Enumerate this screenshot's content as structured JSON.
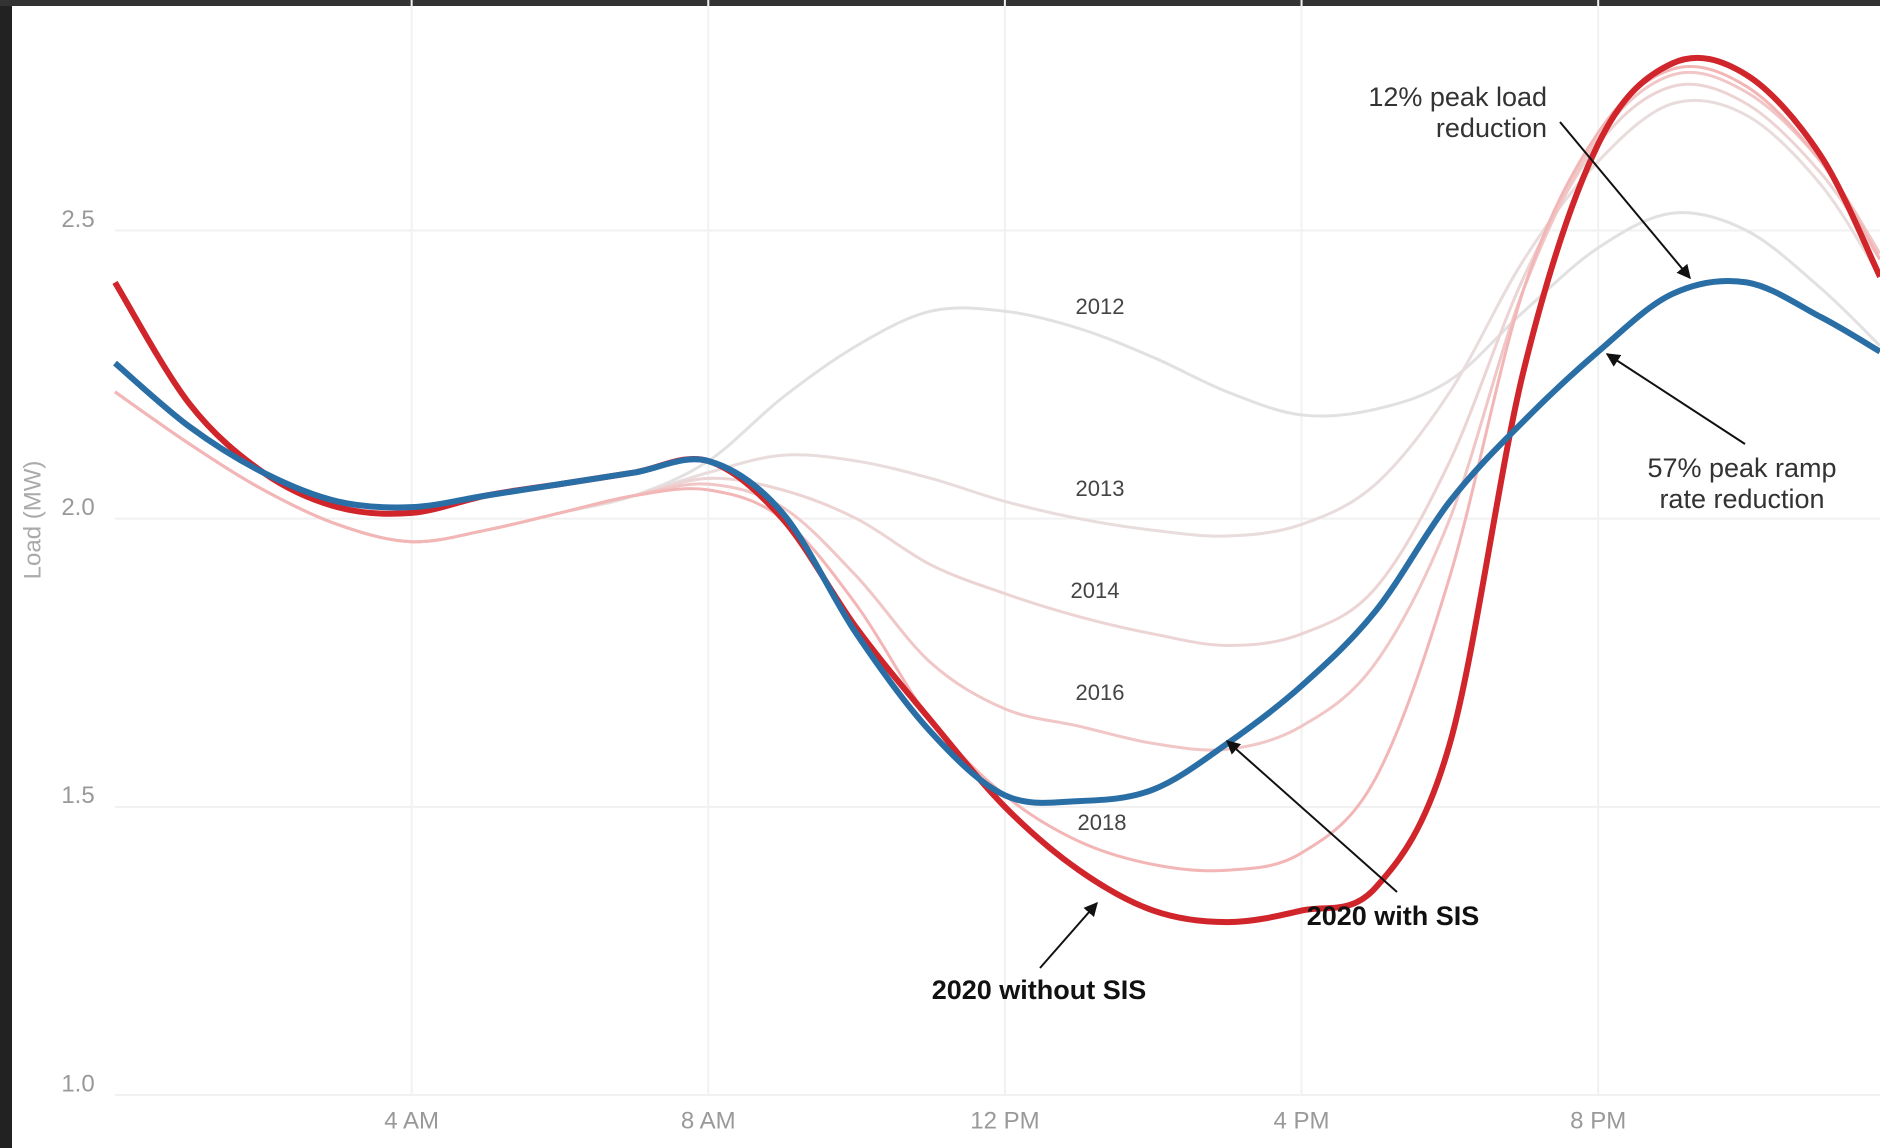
{
  "chart_data": {
    "type": "line",
    "y_label": "Load (MW)",
    "x": [
      0,
      1,
      2,
      3,
      4,
      5,
      6,
      7,
      8,
      9,
      10,
      11,
      12,
      13,
      14,
      15,
      16,
      17,
      18,
      19,
      20,
      21,
      22,
      23,
      23.8
    ],
    "xlim": [
      0,
      23.8
    ],
    "xticks": [
      {
        "value": 4,
        "label": "4 AM"
      },
      {
        "value": 8,
        "label": "8 AM"
      },
      {
        "value": 12,
        "label": "12 PM"
      },
      {
        "value": 16,
        "label": "4 PM"
      },
      {
        "value": 20,
        "label": "8 PM"
      }
    ],
    "ylim": [
      1.0,
      2.9
    ],
    "yticks": [
      {
        "value": 1.0,
        "label": "1.0"
      },
      1.5,
      {
        "value": 2.0,
        "label": "2.0"
      },
      2.5
    ],
    "grid": true,
    "series": [
      {
        "name": "2012",
        "color": "#e2e0e0",
        "width": 3,
        "values": [
          2.22,
          2.13,
          2.05,
          1.99,
          1.96,
          1.98,
          2.01,
          2.04,
          2.1,
          2.21,
          2.3,
          2.36,
          2.36,
          2.33,
          2.28,
          2.22,
          2.18,
          2.19,
          2.24,
          2.36,
          2.47,
          2.53,
          2.5,
          2.4,
          2.3
        ]
      },
      {
        "name": "2013",
        "color": "#e8dcdc",
        "width": 3,
        "values": [
          2.22,
          2.13,
          2.05,
          1.99,
          1.96,
          1.98,
          2.01,
          2.04,
          2.08,
          2.11,
          2.1,
          2.07,
          2.03,
          2.0,
          1.98,
          1.97,
          1.99,
          2.06,
          2.22,
          2.45,
          2.62,
          2.72,
          2.7,
          2.58,
          2.42
        ]
      },
      {
        "name": "2014",
        "color": "#ecd4d4",
        "width": 3,
        "values": [
          2.22,
          2.13,
          2.05,
          1.99,
          1.96,
          1.98,
          2.01,
          2.04,
          2.07,
          2.05,
          2.0,
          1.92,
          1.87,
          1.83,
          1.8,
          1.78,
          1.8,
          1.88,
          2.1,
          2.42,
          2.65,
          2.75,
          2.72,
          2.6,
          2.45
        ]
      },
      {
        "name": "2016",
        "color": "#f0c6c6",
        "width": 3,
        "values": [
          2.22,
          2.13,
          2.05,
          1.99,
          1.96,
          1.98,
          2.01,
          2.04,
          2.06,
          2.02,
          1.9,
          1.75,
          1.67,
          1.64,
          1.61,
          1.6,
          1.64,
          1.75,
          2.0,
          2.4,
          2.66,
          2.77,
          2.74,
          2.62,
          2.46
        ]
      },
      {
        "name": "2018",
        "color": "#f3b6b6",
        "width": 3,
        "values": [
          2.22,
          2.13,
          2.05,
          1.99,
          1.96,
          1.98,
          2.01,
          2.04,
          2.05,
          2.0,
          1.85,
          1.65,
          1.52,
          1.44,
          1.4,
          1.39,
          1.42,
          1.55,
          1.9,
          2.4,
          2.67,
          2.78,
          2.75,
          2.62,
          2.45
        ]
      },
      {
        "name": "2020 without SIS",
        "color": "#cf252b",
        "width": 6,
        "values": [
          2.41,
          2.2,
          2.08,
          2.02,
          2.01,
          2.04,
          2.06,
          2.08,
          2.1,
          2.0,
          1.81,
          1.65,
          1.5,
          1.39,
          1.32,
          1.3,
          1.32,
          1.36,
          1.61,
          2.26,
          2.65,
          2.79,
          2.77,
          2.63,
          2.42
        ]
      },
      {
        "name": "2020 with SIS",
        "color": "#2a6ea6",
        "width": 6,
        "values": [
          2.27,
          2.16,
          2.08,
          2.03,
          2.02,
          2.04,
          2.06,
          2.08,
          2.1,
          2.01,
          1.8,
          1.63,
          1.52,
          1.51,
          1.53,
          1.61,
          1.71,
          1.84,
          2.03,
          2.17,
          2.29,
          2.39,
          2.41,
          2.35,
          2.29
        ]
      }
    ],
    "annotations": [
      {
        "lines": [
          "12% peak load",
          "reduction"
        ]
      },
      {
        "lines": [
          "57% peak ramp",
          "rate reduction"
        ]
      }
    ]
  }
}
